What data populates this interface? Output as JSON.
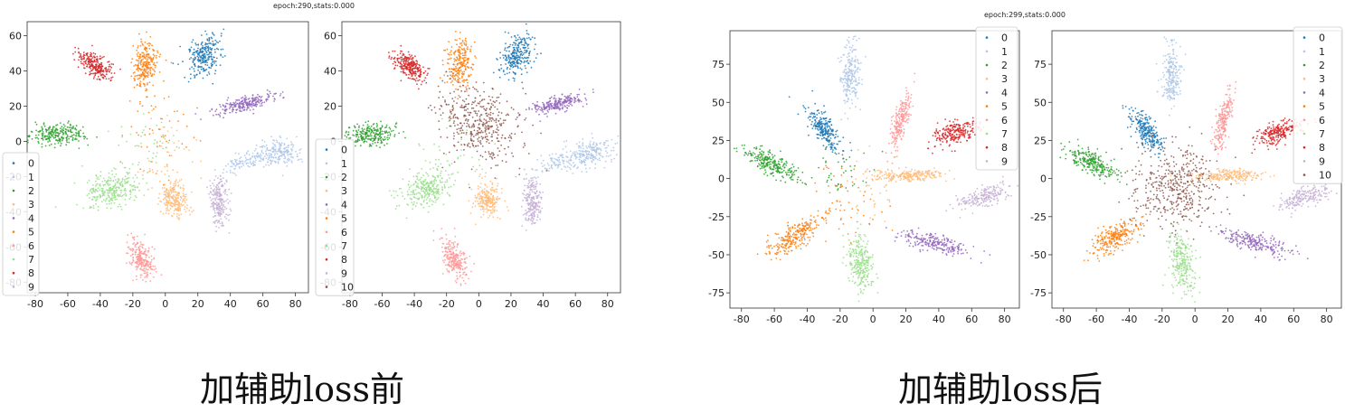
{
  "palette": [
    "#1f77b4",
    "#aec7e8",
    "#2ca02c",
    "#ffbb78",
    "#9467bd",
    "#ff7f0e",
    "#ff9896",
    "#98df8a",
    "#d62728",
    "#c5b0d5",
    "#8c564b"
  ],
  "figures": [
    {
      "title": "epoch:290,stats:0.000",
      "caption": "加辅助loss前"
    },
    {
      "title": "epoch:299,stats:0.000",
      "caption": "加辅助loss后"
    }
  ],
  "chart_data": [
    {
      "type": "scatter",
      "title": "",
      "xlim": [
        -85,
        88
      ],
      "ylim": [
        -86,
        68
      ],
      "xticks": [
        -80,
        -60,
        -40,
        -20,
        0,
        20,
        40,
        60,
        80
      ],
      "yticks": [
        -80,
        -60,
        -40,
        -20,
        0,
        20,
        40,
        60
      ],
      "legend": [
        "0",
        "1",
        "2",
        "3",
        "4",
        "5",
        "6",
        "7",
        "8",
        "9"
      ],
      "legend_placement": "lower-left",
      "clusters": [
        {
          "label": "8",
          "color": "#d62728",
          "cx": -43,
          "cy": 43,
          "sx": 5,
          "sy": 4,
          "r": -0.6,
          "n": 260
        },
        {
          "label": "5",
          "color": "#ff7f0e",
          "cx": -12,
          "cy": 44,
          "sx": 4,
          "sy": 7,
          "r": 0.2,
          "n": 240
        },
        {
          "label": "0",
          "color": "#1f77b4",
          "cx": 24,
          "cy": 49,
          "sx": 5,
          "sy": 6,
          "r": 0.3,
          "n": 260
        },
        {
          "label": "4",
          "color": "#9467bd",
          "cx": 48,
          "cy": 21,
          "sx": 9,
          "sy": 3,
          "r": 0.7,
          "n": 240
        },
        {
          "label": "2",
          "color": "#2ca02c",
          "cx": -67,
          "cy": 4,
          "sx": 8,
          "sy": 3,
          "r": 0.1,
          "n": 240
        },
        {
          "label": "1",
          "color": "#aec7e8",
          "cx": 68,
          "cy": -7,
          "sx": 8,
          "sy": 4,
          "r": 0.2,
          "n": 220
        },
        {
          "label": "1",
          "color": "#aec7e8",
          "cx": 47,
          "cy": -12,
          "sx": 6,
          "sy": 3,
          "r": 0.6,
          "n": 80
        },
        {
          "label": "9",
          "color": "#c5b0d5",
          "cx": 33,
          "cy": -34,
          "sx": 3,
          "sy": 7,
          "r": -0.1,
          "n": 220
        },
        {
          "label": "7",
          "color": "#98df8a",
          "cx": -32,
          "cy": -27,
          "sx": 8,
          "sy": 5,
          "r": 0.3,
          "n": 280
        },
        {
          "label": "3",
          "color": "#ffbb78",
          "cx": 5,
          "cy": -33,
          "sx": 4,
          "sy": 5,
          "r": -0.1,
          "n": 230
        },
        {
          "label": "6",
          "color": "#ff9896",
          "cx": -15,
          "cy": -67,
          "sx": 4,
          "sy": 6,
          "r": -0.5,
          "n": 240
        },
        {
          "label": "mix",
          "color": "#ff7f0e",
          "cx": -5,
          "cy": 10,
          "sx": 12,
          "sy": 14,
          "r": 0,
          "n": 60
        },
        {
          "label": "mix",
          "color": "#98df8a",
          "cx": -15,
          "cy": -5,
          "sx": 10,
          "sy": 10,
          "r": 0,
          "n": 50
        },
        {
          "label": "mix",
          "color": "#ffbb78",
          "cx": 0,
          "cy": -10,
          "sx": 12,
          "sy": 12,
          "r": 0,
          "n": 50
        }
      ]
    },
    {
      "type": "scatter",
      "title": "",
      "xlim": [
        -85,
        88
      ],
      "ylim": [
        -86,
        68
      ],
      "xticks": [
        -80,
        -60,
        -40,
        -20,
        0,
        20,
        40,
        60,
        80
      ],
      "yticks": [
        -80,
        -60,
        -40,
        -20,
        0,
        20,
        40,
        60
      ],
      "legend": [
        "0",
        "1",
        "2",
        "3",
        "4",
        "5",
        "6",
        "7",
        "8",
        "9",
        "10"
      ],
      "legend_placement": "lower-left",
      "clusters": [
        {
          "label": "8",
          "color": "#d62728",
          "cx": -43,
          "cy": 43,
          "sx": 5,
          "sy": 4,
          "r": -0.6,
          "n": 260
        },
        {
          "label": "5",
          "color": "#ff7f0e",
          "cx": -12,
          "cy": 44,
          "sx": 4,
          "sy": 7,
          "r": 0.2,
          "n": 240
        },
        {
          "label": "0",
          "color": "#1f77b4",
          "cx": 24,
          "cy": 49,
          "sx": 5,
          "sy": 6,
          "r": 0.3,
          "n": 260
        },
        {
          "label": "4",
          "color": "#9467bd",
          "cx": 48,
          "cy": 21,
          "sx": 9,
          "sy": 3,
          "r": 0.7,
          "n": 240
        },
        {
          "label": "2",
          "color": "#2ca02c",
          "cx": -67,
          "cy": 4,
          "sx": 8,
          "sy": 3,
          "r": 0.1,
          "n": 240
        },
        {
          "label": "1",
          "color": "#aec7e8",
          "cx": 68,
          "cy": -7,
          "sx": 8,
          "sy": 4,
          "r": 0.2,
          "n": 220
        },
        {
          "label": "1",
          "color": "#aec7e8",
          "cx": 47,
          "cy": -12,
          "sx": 6,
          "sy": 3,
          "r": 0.6,
          "n": 80
        },
        {
          "label": "9",
          "color": "#c5b0d5",
          "cx": 33,
          "cy": -34,
          "sx": 3,
          "sy": 7,
          "r": -0.1,
          "n": 220
        },
        {
          "label": "7",
          "color": "#98df8a",
          "cx": -32,
          "cy": -27,
          "sx": 8,
          "sy": 5,
          "r": 0.3,
          "n": 280
        },
        {
          "label": "3",
          "color": "#ffbb78",
          "cx": 5,
          "cy": -33,
          "sx": 4,
          "sy": 5,
          "r": -0.1,
          "n": 230
        },
        {
          "label": "6",
          "color": "#ff9896",
          "cx": -15,
          "cy": -67,
          "sx": 4,
          "sy": 6,
          "r": -0.5,
          "n": 240
        },
        {
          "label": "10",
          "color": "#8c564b",
          "cx": 0,
          "cy": 10,
          "sx": 13,
          "sy": 11,
          "r": -0.3,
          "n": 420
        },
        {
          "label": "mix",
          "color": "#98df8a",
          "cx": -15,
          "cy": -5,
          "sx": 10,
          "sy": 10,
          "r": 0,
          "n": 40
        }
      ]
    },
    {
      "type": "scatter",
      "title": "",
      "xlim": [
        -87,
        89
      ],
      "ylim": [
        -85,
        97
      ],
      "xticks": [
        -80,
        -60,
        -40,
        -20,
        0,
        20,
        40,
        60,
        80
      ],
      "yticks": [
        -75,
        -50,
        -25,
        0,
        25,
        50,
        75
      ],
      "legend": [
        "0",
        "1",
        "2",
        "3",
        "4",
        "5",
        "6",
        "7",
        "8",
        "9"
      ],
      "legend_placement": "upper-right",
      "clusters": [
        {
          "label": "1",
          "color": "#aec7e8",
          "cx": -14,
          "cy": 68,
          "sx": 3,
          "sy": 10,
          "r": 0.1,
          "n": 230
        },
        {
          "label": "6",
          "color": "#ff9896",
          "cx": 17,
          "cy": 38,
          "sx": 3,
          "sy": 9,
          "r": 0.7,
          "n": 230
        },
        {
          "label": "8",
          "color": "#d62728",
          "cx": 50,
          "cy": 30,
          "sx": 7,
          "sy": 4,
          "r": 0.5,
          "n": 230
        },
        {
          "label": "0",
          "color": "#1f77b4",
          "cx": -30,
          "cy": 32,
          "sx": 5,
          "sy": 7,
          "r": -0.7,
          "n": 250
        },
        {
          "label": "2",
          "color": "#2ca02c",
          "cx": -62,
          "cy": 10,
          "sx": 8,
          "sy": 5,
          "r": -0.7,
          "n": 250
        },
        {
          "label": "3",
          "color": "#ffbb78",
          "cx": 20,
          "cy": 2,
          "sx": 11,
          "sy": 2,
          "r": 0.2,
          "n": 230
        },
        {
          "label": "9",
          "color": "#c5b0d5",
          "cx": 67,
          "cy": -12,
          "sx": 8,
          "sy": 4,
          "r": 0.6,
          "n": 200
        },
        {
          "label": "5",
          "color": "#ff7f0e",
          "cx": -48,
          "cy": -38,
          "sx": 8,
          "sy": 6,
          "r": 0.7,
          "n": 260
        },
        {
          "label": "4",
          "color": "#9467bd",
          "cx": 37,
          "cy": -42,
          "sx": 11,
          "sy": 4,
          "r": -0.7,
          "n": 230
        },
        {
          "label": "7",
          "color": "#98df8a",
          "cx": -8,
          "cy": -55,
          "sx": 4,
          "sy": 10,
          "r": -0.3,
          "n": 260
        },
        {
          "label": "mix",
          "color": "#ff7f0e",
          "cx": -20,
          "cy": -15,
          "sx": 10,
          "sy": 12,
          "r": 0,
          "n": 60
        },
        {
          "label": "mix",
          "color": "#2ca02c",
          "cx": -20,
          "cy": 5,
          "sx": 9,
          "sy": 8,
          "r": 0,
          "n": 40
        },
        {
          "label": "mix",
          "color": "#ffbb78",
          "cx": 0,
          "cy": -5,
          "sx": 10,
          "sy": 10,
          "r": 0,
          "n": 40
        }
      ]
    },
    {
      "type": "scatter",
      "title": "",
      "xlim": [
        -87,
        89
      ],
      "ylim": [
        -85,
        97
      ],
      "xticks": [
        -80,
        -60,
        -40,
        -20,
        0,
        20,
        40,
        60,
        80
      ],
      "yticks": [
        -75,
        -50,
        -25,
        0,
        25,
        50,
        75
      ],
      "legend": [
        "0",
        "1",
        "2",
        "3",
        "4",
        "5",
        "6",
        "7",
        "8",
        "9",
        "10"
      ],
      "legend_placement": "upper-right",
      "clusters": [
        {
          "label": "1",
          "color": "#aec7e8",
          "cx": -14,
          "cy": 68,
          "sx": 3,
          "sy": 10,
          "r": 0.1,
          "n": 230
        },
        {
          "label": "6",
          "color": "#ff9896",
          "cx": 17,
          "cy": 38,
          "sx": 3,
          "sy": 9,
          "r": 0.7,
          "n": 230
        },
        {
          "label": "8",
          "color": "#d62728",
          "cx": 50,
          "cy": 30,
          "sx": 7,
          "sy": 4,
          "r": 0.5,
          "n": 230
        },
        {
          "label": "0",
          "color": "#1f77b4",
          "cx": -30,
          "cy": 32,
          "sx": 5,
          "sy": 7,
          "r": -0.7,
          "n": 250
        },
        {
          "label": "2",
          "color": "#2ca02c",
          "cx": -62,
          "cy": 10,
          "sx": 8,
          "sy": 5,
          "r": -0.7,
          "n": 250
        },
        {
          "label": "3",
          "color": "#ffbb78",
          "cx": 20,
          "cy": 2,
          "sx": 11,
          "sy": 2,
          "r": 0.2,
          "n": 230
        },
        {
          "label": "9",
          "color": "#c5b0d5",
          "cx": 67,
          "cy": -12,
          "sx": 8,
          "sy": 4,
          "r": 0.6,
          "n": 200
        },
        {
          "label": "5",
          "color": "#ff7f0e",
          "cx": -48,
          "cy": -38,
          "sx": 8,
          "sy": 6,
          "r": 0.7,
          "n": 260
        },
        {
          "label": "4",
          "color": "#9467bd",
          "cx": 37,
          "cy": -42,
          "sx": 11,
          "sy": 4,
          "r": -0.7,
          "n": 230
        },
        {
          "label": "7",
          "color": "#98df8a",
          "cx": -8,
          "cy": -55,
          "sx": 4,
          "sy": 10,
          "r": -0.3,
          "n": 260
        },
        {
          "label": "10",
          "color": "#8c564b",
          "cx": -12,
          "cy": -5,
          "sx": 13,
          "sy": 14,
          "r": 0,
          "n": 450
        }
      ]
    }
  ]
}
